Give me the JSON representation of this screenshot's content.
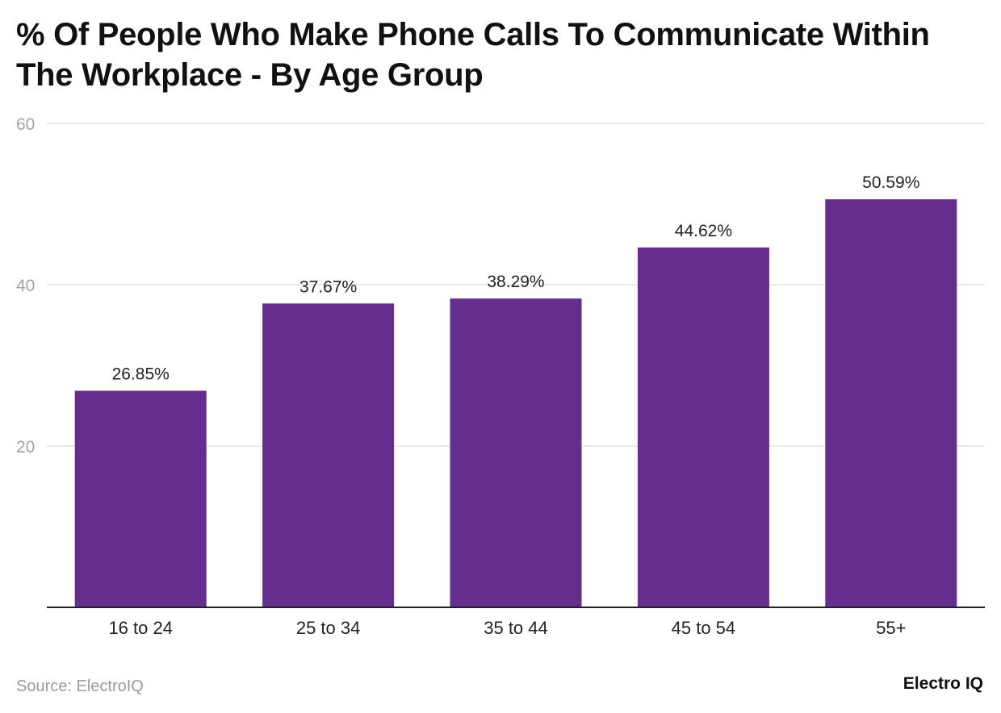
{
  "source_text": "Source: ElectroIQ",
  "brand_text": "Electro IQ",
  "chart_data": {
    "type": "bar",
    "title": "% Of People Who Make Phone Calls To Communicate Within The Workplace - By Age Group",
    "categories": [
      "16 to 24",
      "25 to 34",
      "35 to 44",
      "45 to 54",
      "55+"
    ],
    "values": [
      26.85,
      37.67,
      38.29,
      44.62,
      50.59
    ],
    "data_labels": [
      "26.85%",
      "37.67%",
      "38.29%",
      "44.62%",
      "50.59%"
    ],
    "xlabel": "",
    "ylabel": "",
    "ylim": [
      0,
      60
    ],
    "yticks": [
      20,
      40,
      60
    ],
    "grid": true,
    "bar_color": "#652d8e",
    "gridline_color": "#e3e3e3",
    "axis_color": "#222222"
  }
}
